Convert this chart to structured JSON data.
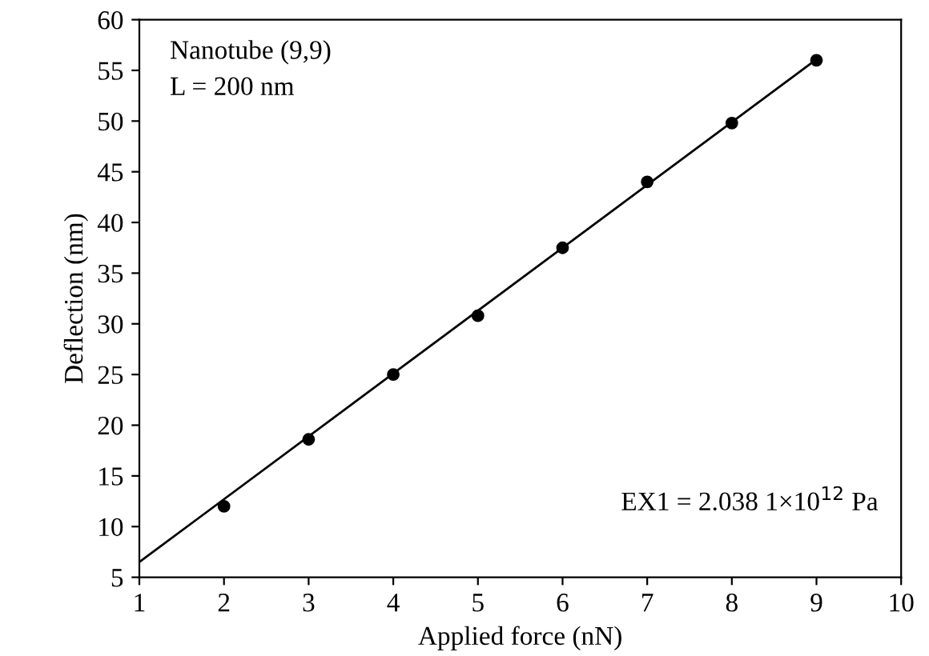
{
  "chart_data": {
    "type": "scatter",
    "xlabel": "Applied force (nN)",
    "ylabel": "Deflection (nm)",
    "x": [
      2,
      3,
      4,
      5,
      6,
      7,
      8,
      9
    ],
    "series": [
      {
        "color": "#000000",
        "marker": "circle",
        "values": [
          12,
          18.6,
          25,
          30.8,
          37.5,
          44,
          49.8,
          56
        ]
      },
      {
        "type": "line",
        "color": "#000000",
        "x": [
          1,
          9
        ],
        "values": [
          6.5,
          56.1
        ]
      }
    ],
    "xlim": [
      1,
      10
    ],
    "xticks": [
      1,
      2,
      3,
      4,
      5,
      6,
      7,
      8,
      9,
      10
    ],
    "ylim": [
      5,
      60
    ],
    "yticks": [
      5,
      10,
      15,
      20,
      25,
      30,
      35,
      40,
      45,
      50,
      55,
      60
    ],
    "grid": false,
    "legend": false,
    "annotations": [
      "Nanotube (9,9)",
      "L = 200 nm",
      "EX1 = 2.038 1×10$^{12}$ Pa"
    ]
  }
}
